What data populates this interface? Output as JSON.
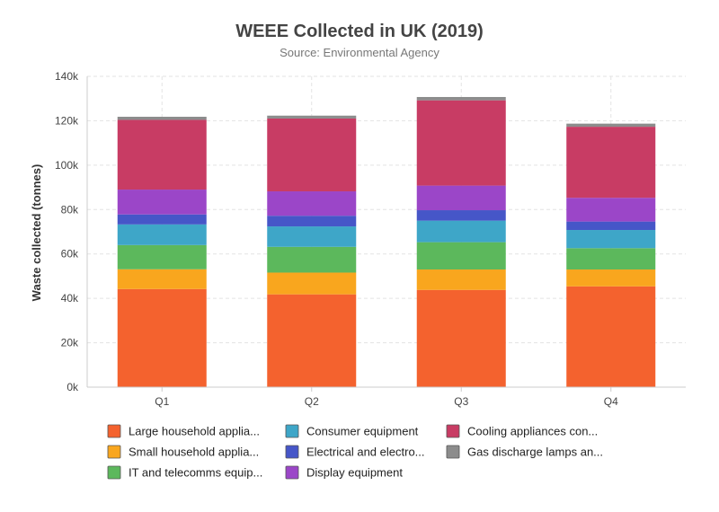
{
  "chart_data": {
    "type": "bar",
    "stacked": true,
    "title": "WEEE Collected in UK (2019)",
    "subtitle": "Source: Environmental Agency",
    "xlabel": "",
    "ylabel": "Waste collected (tonnes)",
    "ylim": [
      0,
      140000
    ],
    "yticks": [
      0,
      20000,
      40000,
      60000,
      80000,
      100000,
      120000,
      140000
    ],
    "ytick_labels": [
      "0k",
      "20k",
      "40k",
      "60k",
      "80k",
      "100k",
      "120k",
      "140k"
    ],
    "grid": true,
    "legend_position": "bottom",
    "categories": [
      "Q1",
      "Q2",
      "Q3",
      "Q4"
    ],
    "series": [
      {
        "name": "Large household applia...",
        "color": "#F4622E",
        "values": [
          44200,
          41800,
          43800,
          45400
        ]
      },
      {
        "name": "Small household applia...",
        "color": "#F9A61E",
        "values": [
          8900,
          9800,
          9200,
          7600
        ]
      },
      {
        "name": "IT and telecomms equip...",
        "color": "#5CB85C",
        "values": [
          10900,
          11600,
          12300,
          9600
        ]
      },
      {
        "name": "Consumer equipment",
        "color": "#3EA6C8",
        "values": [
          9300,
          9200,
          9700,
          8200
        ]
      },
      {
        "name": "Electrical and electro...",
        "color": "#4656C8",
        "values": [
          4500,
          4800,
          4700,
          3800
        ]
      },
      {
        "name": "Display equipment",
        "color": "#9B46C8",
        "values": [
          11200,
          11000,
          11100,
          10700
        ]
      },
      {
        "name": "Cooling appliances con...",
        "color": "#C83C64",
        "values": [
          31400,
          32800,
          38400,
          32000
        ]
      },
      {
        "name": "Gas discharge lamps an...",
        "color": "#8C8C8C",
        "values": [
          1400,
          1300,
          1500,
          1400
        ]
      }
    ]
  }
}
